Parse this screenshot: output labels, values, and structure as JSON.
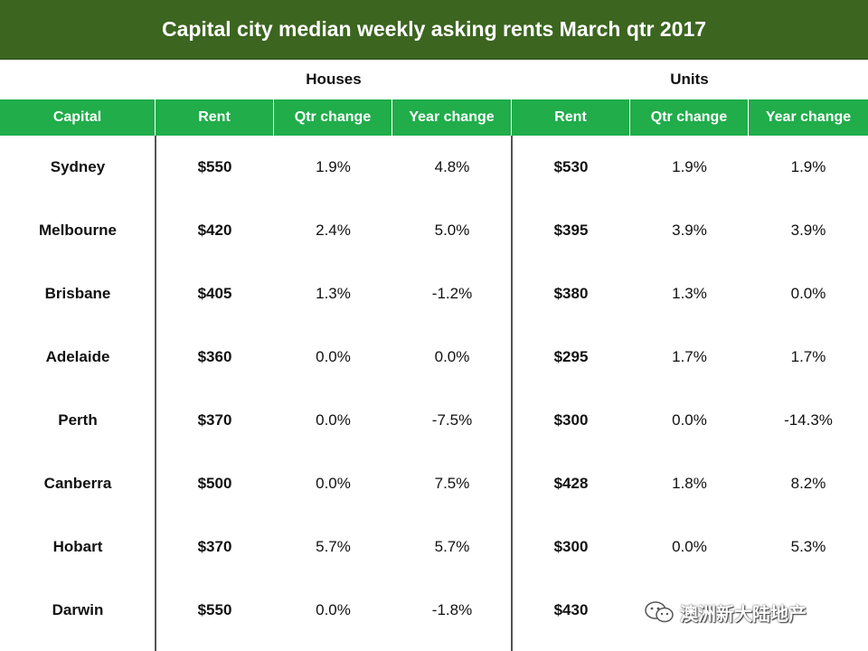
{
  "title": "Capital city median weekly asking rents March qtr 2017",
  "groups": {
    "houses": "Houses",
    "units": "Units"
  },
  "headers": [
    "Capital",
    "Rent",
    "Qtr change",
    "Year change",
    "Rent",
    "Qtr change",
    "Year change"
  ],
  "rows": [
    {
      "city": "Sydney",
      "h_rent": "$550",
      "h_qtr": "1.9%",
      "h_year": "4.8%",
      "u_rent": "$530",
      "u_qtr": "1.9%",
      "u_year": "1.9%"
    },
    {
      "city": "Melbourne",
      "h_rent": "$420",
      "h_qtr": "2.4%",
      "h_year": "5.0%",
      "u_rent": "$395",
      "u_qtr": "3.9%",
      "u_year": "3.9%"
    },
    {
      "city": "Brisbane",
      "h_rent": "$405",
      "h_qtr": "1.3%",
      "h_year": "-1.2%",
      "u_rent": "$380",
      "u_qtr": "1.3%",
      "u_year": "0.0%"
    },
    {
      "city": "Adelaide",
      "h_rent": "$360",
      "h_qtr": "0.0%",
      "h_year": "0.0%",
      "u_rent": "$295",
      "u_qtr": "1.7%",
      "u_year": "1.7%"
    },
    {
      "city": "Perth",
      "h_rent": "$370",
      "h_qtr": "0.0%",
      "h_year": "-7.5%",
      "u_rent": "$300",
      "u_qtr": "0.0%",
      "u_year": "-14.3%"
    },
    {
      "city": "Canberra",
      "h_rent": "$500",
      "h_qtr": "0.0%",
      "h_year": "7.5%",
      "u_rent": "$428",
      "u_qtr": "1.8%",
      "u_year": "8.2%"
    },
    {
      "city": "Hobart",
      "h_rent": "$370",
      "h_qtr": "5.7%",
      "h_year": "5.7%",
      "u_rent": "$300",
      "u_qtr": "0.0%",
      "u_year": "5.3%"
    },
    {
      "city": "Darwin",
      "h_rent": "$550",
      "h_qtr": "0.0%",
      "h_year": "-1.8%",
      "u_rent": "$430",
      "u_qtr": "",
      "u_year": ""
    }
  ],
  "watermark": {
    "text": "澳洲新大陆地产",
    "icon": "wechat-icon"
  },
  "colors": {
    "title_bg": "#3c6520",
    "header_bg": "#20ad4a"
  }
}
